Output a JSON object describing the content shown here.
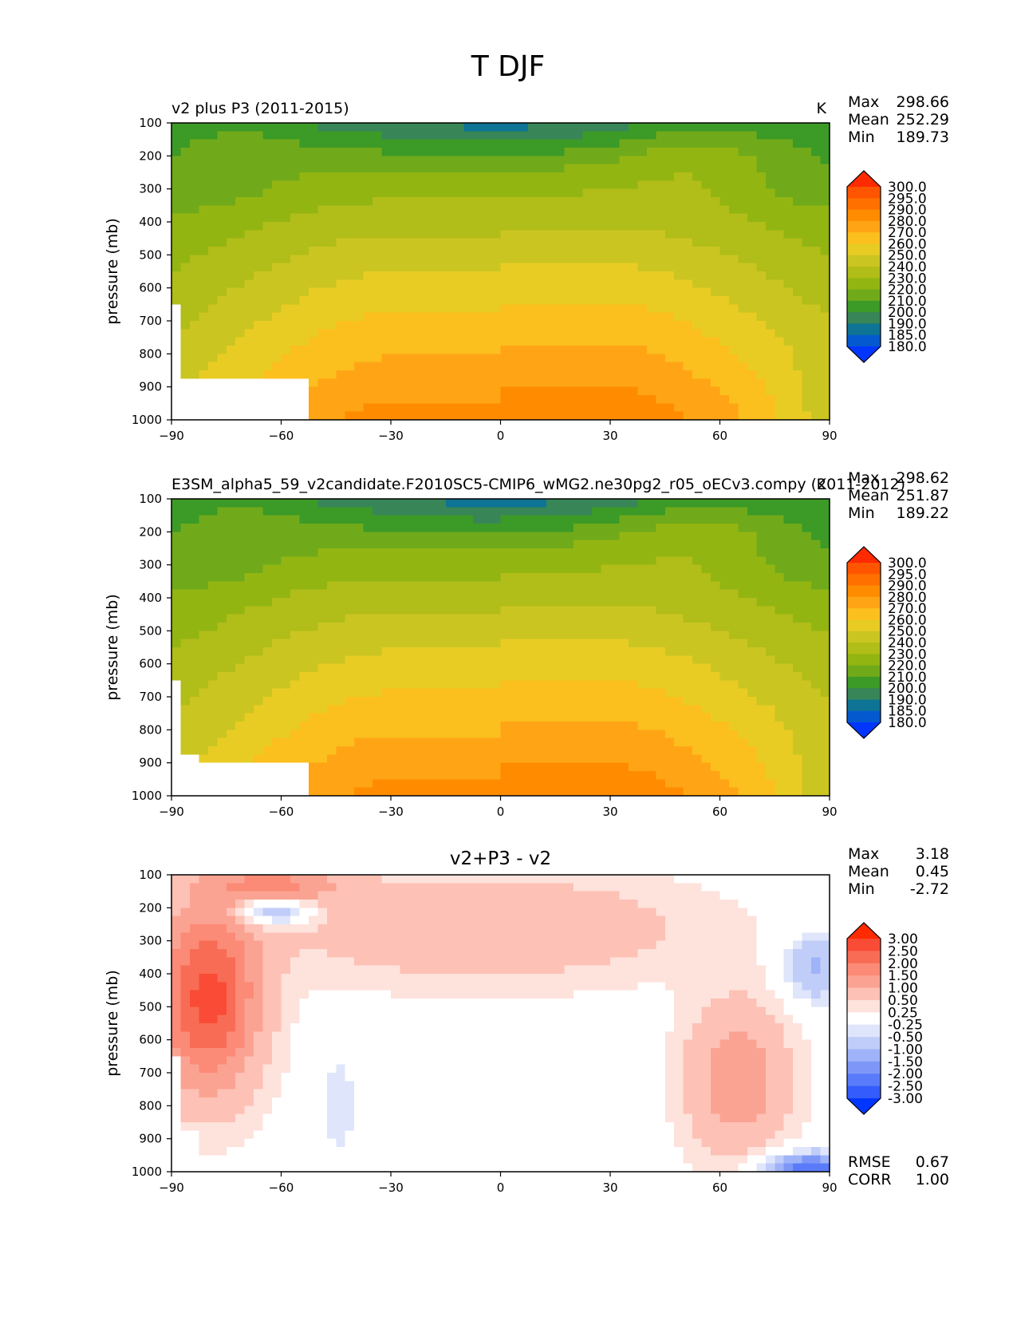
{
  "figure_title": "T DJF",
  "chart_data": [
    {
      "type": "contour",
      "title": "v2 plus P3 (2011-2015)",
      "units": "K",
      "xlabel": "",
      "ylabel": "pressure (mb)",
      "xticks": [
        "−90",
        "−60",
        "−30",
        "0",
        "30",
        "60",
        "90"
      ],
      "yticks": [
        "100",
        "200",
        "300",
        "400",
        "500",
        "600",
        "700",
        "800",
        "900",
        "1000"
      ],
      "xlim": [
        -90,
        90
      ],
      "ylim": [
        1000,
        100
      ],
      "stats": {
        "max_label": "Max",
        "max": "298.66",
        "mean_label": "Mean",
        "mean": "252.29",
        "min_label": "Min",
        "min": "189.73"
      },
      "levels": [
        "300.0",
        "295.0",
        "290.0",
        "280.0",
        "270.0",
        "260.0",
        "250.0",
        "240.0",
        "230.0",
        "220.0",
        "210.0",
        "200.0",
        "190.0",
        "185.0",
        "180.0"
      ],
      "level_colors": [
        "#ff2a00",
        "#ff5400",
        "#ff7000",
        "#ff8c00",
        "#ffa515",
        "#fbbf1e",
        "#e8cc24",
        "#cbc521",
        "#b1bd18",
        "#93b512",
        "#70aa1a",
        "#3c9a27",
        "#388657",
        "#0e7495",
        "#0559ce",
        "#0036ff"
      ]
    },
    {
      "type": "contour",
      "title": "E3SM_alpha5_59_v2candidate.F2010SC5-CMIP6_wMG2.ne30pg2_r05_oECv3.compy (2011-2012)",
      "units": "K",
      "xlabel": "",
      "ylabel": "pressure (mb)",
      "xticks": [
        "−90",
        "−60",
        "−30",
        "0",
        "30",
        "60",
        "90"
      ],
      "yticks": [
        "100",
        "200",
        "300",
        "400",
        "500",
        "600",
        "700",
        "800",
        "900",
        "1000"
      ],
      "xlim": [
        -90,
        90
      ],
      "ylim": [
        1000,
        100
      ],
      "stats": {
        "max_label": "Max",
        "max": "298.62",
        "mean_label": "Mean",
        "mean": "251.87",
        "min_label": "Min",
        "min": "189.22"
      },
      "levels": [
        "300.0",
        "295.0",
        "290.0",
        "280.0",
        "270.0",
        "260.0",
        "250.0",
        "240.0",
        "230.0",
        "220.0",
        "210.0",
        "200.0",
        "190.0",
        "185.0",
        "180.0"
      ],
      "level_colors": [
        "#ff2a00",
        "#ff5400",
        "#ff7000",
        "#ff8c00",
        "#ffa515",
        "#fbbf1e",
        "#e8cc24",
        "#cbc521",
        "#b1bd18",
        "#93b512",
        "#70aa1a",
        "#3c9a27",
        "#388657",
        "#0e7495",
        "#0559ce",
        "#0036ff"
      ]
    },
    {
      "type": "contour",
      "title": "v2+P3 - v2",
      "units": "",
      "xlabel": "",
      "ylabel": "pressure (mb)",
      "xticks": [
        "−90",
        "−60",
        "−30",
        "0",
        "30",
        "60",
        "90"
      ],
      "yticks": [
        "100",
        "200",
        "300",
        "400",
        "500",
        "600",
        "700",
        "800",
        "900",
        "1000"
      ],
      "xlim": [
        -90,
        90
      ],
      "ylim": [
        1000,
        100
      ],
      "stats": {
        "max_label": "Max",
        "max": "3.18",
        "mean_label": "Mean",
        "mean": "0.45",
        "min_label": "Min",
        "min": "-2.72"
      },
      "error_stats": {
        "rmse_label": "RMSE",
        "rmse": "0.67",
        "corr_label": "CORR",
        "corr": "1.00"
      },
      "levels": [
        "3.00",
        "2.50",
        "2.00",
        "1.50",
        "1.00",
        "0.50",
        "0.25",
        "-0.25",
        "-0.50",
        "-1.00",
        "-1.50",
        "-2.00",
        "-2.50",
        "-3.00"
      ],
      "level_colors": [
        "#ff2a00",
        "#f94b35",
        "#f86c55",
        "#fb8a76",
        "#fba392",
        "#fdc1b6",
        "#fee2dc",
        "#ffffff",
        "#dfe5fb",
        "#c1cdf9",
        "#9fb3f8",
        "#7e97f7",
        "#5a7bf9",
        "#335cfb",
        "#0036ff"
      ]
    }
  ]
}
